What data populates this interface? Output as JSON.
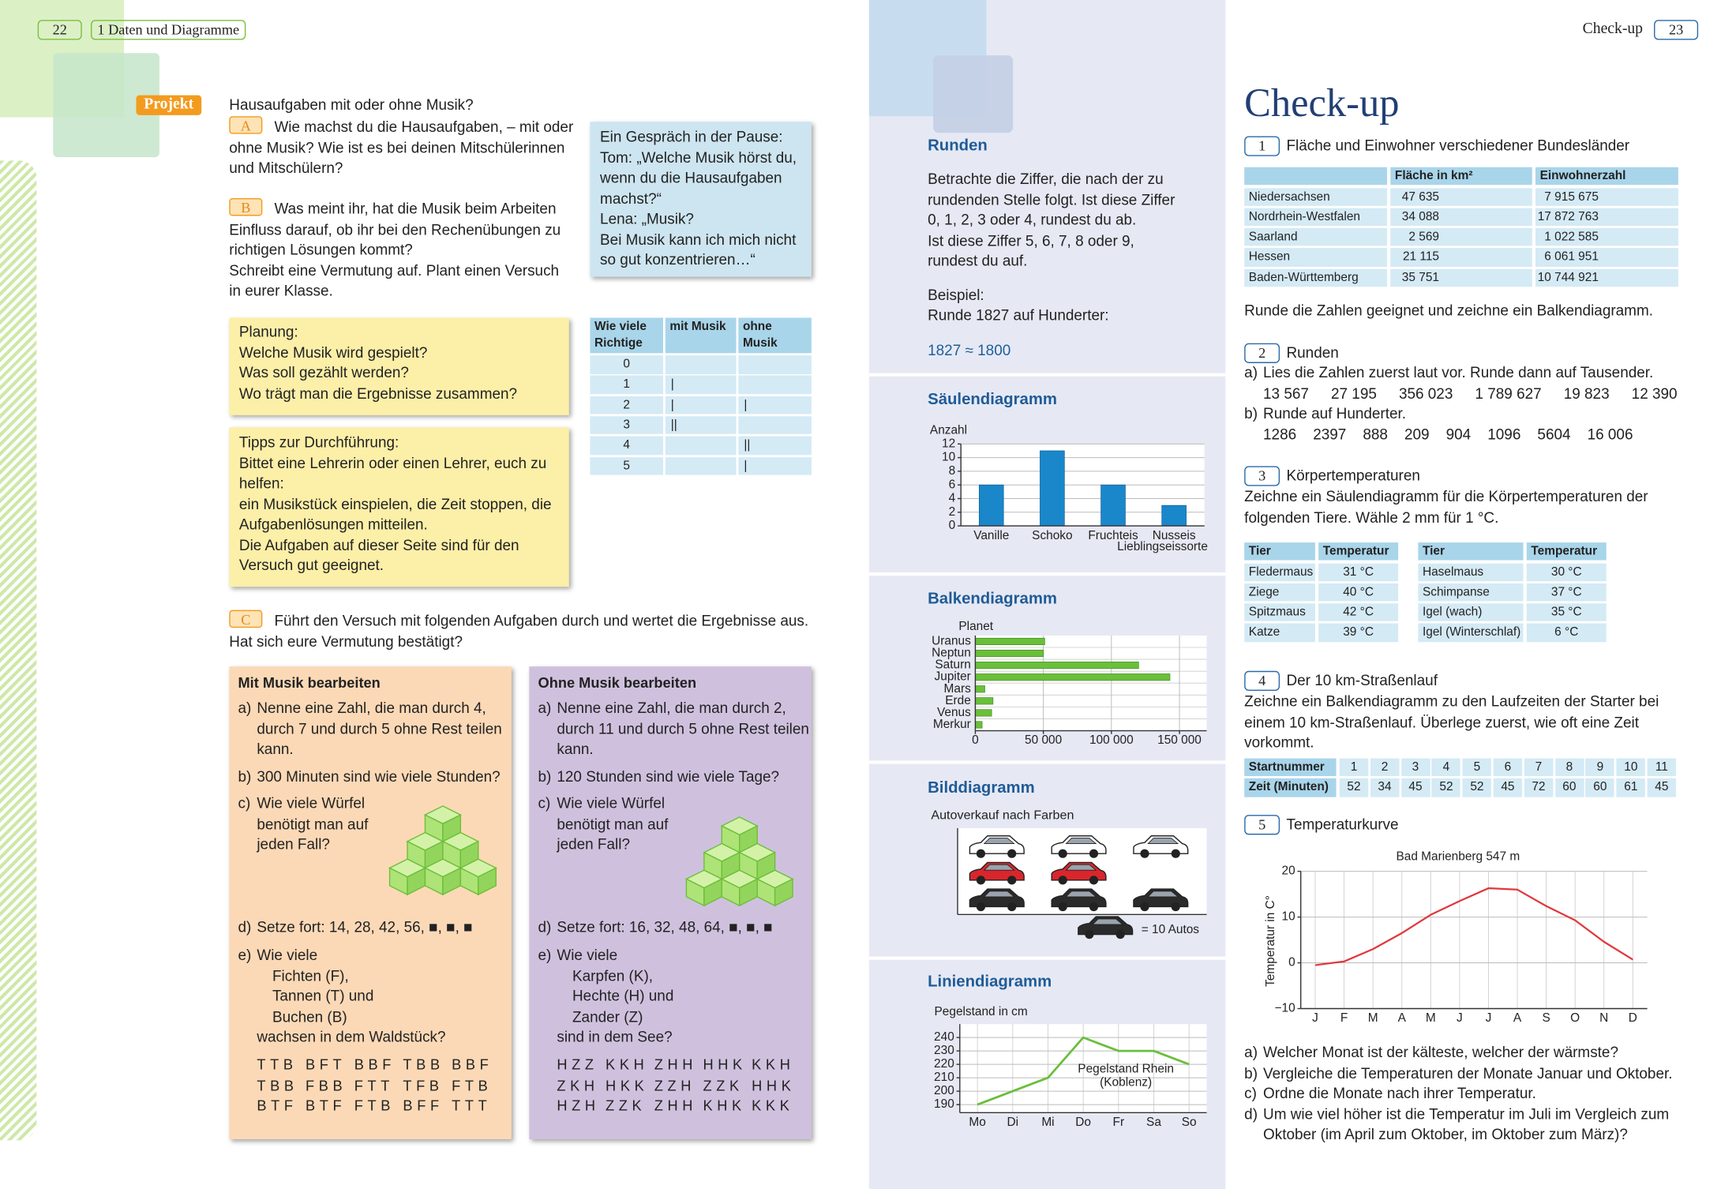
{
  "left_page": {
    "page_number": "22",
    "chapter": "1 Daten und Diagramme",
    "project_label": "Projekt",
    "project_title": "Hausaufgaben mit oder ohne Musik?",
    "task_a": {
      "label": "A",
      "text": "Wie machst du die Hausaufgaben, – mit oder ohne Musik? Wie ist es bei deinen Mitschülerinnen und Mitschülern?"
    },
    "task_b": {
      "label": "B",
      "paragraphs": [
        "Was meint ihr, hat die Musik beim Arbeiten Einfluss darauf, ob ihr bei den Rechenübungen zu richtigen Lösungen kommt?",
        "Schreibt eine Vermutung auf. Plant einen Versuch in eurer Klasse."
      ]
    },
    "dialog": [
      "Ein Gespräch in der Pause:",
      "Tom: „Welche Musik hörst du, wenn du die Hausaufgaben machst?“",
      "Lena: „Musik?",
      "Bei Musik kann ich mich nicht so gut konzentrieren…“"
    ],
    "tally_table": {
      "header": [
        "Wie viele Richtige",
        "mit Musik",
        "ohne Musik"
      ],
      "rows": [
        {
          "count": "0"
        },
        {
          "count": "1",
          "with": "|"
        },
        {
          "count": "2",
          "with": "|",
          "without": "|"
        },
        {
          "count": "3",
          "with": "||"
        },
        {
          "count": "4",
          "without": "||"
        },
        {
          "count": "5",
          "without": "|"
        }
      ]
    },
    "planning": [
      "Planung:",
      "Welche Musik wird gespielt?",
      "Was soll gezählt werden?",
      "Wo trägt man die Ergebnisse zusammen?"
    ],
    "tips": [
      "Tipps zur Durchführung:",
      "Bittet eine Lehrerin oder einen Lehrer, euch zu helfen:",
      "ein Musikstück einspielen, die Zeit stoppen, die Aufgabenlösungen mitteilen.",
      "Die Aufgaben auf dieser Seite sind für den Versuch gut geeignet."
    ],
    "task_c": {
      "label": "C",
      "text": "Führt den Versuch mit folgenden Aufgaben durch und wertet die Ergebnisse aus. Hat sich eure Vermutung bestätigt?"
    },
    "cards": [
      {
        "title": "Mit Musik bearbeiten",
        "items": [
          {
            "label": "a)",
            "lines": [
              "Nenne eine Zahl, die man durch 4,",
              "durch 7 und durch 5 ohne Rest teilen",
              "kann."
            ]
          },
          {
            "label": "b)",
            "lines": [
              "300 Minuten sind wie viele Stunden?"
            ]
          },
          {
            "label": "c)",
            "lines": [
              "Wie viele Würfel",
              "benötigt man auf",
              "jeden Fall?"
            ]
          },
          {
            "label": "d)",
            "lines": [
              "Setze fort: 14, 28, 42, 56, ■, ■, ■"
            ]
          },
          {
            "label": "e)",
            "lines": [
              "Wie viele",
              "Fichten (F),",
              "Tannen (T) und",
              "Buchen (B)",
              "wachsen in dem Waldstück?"
            ]
          }
        ],
        "letters": [
          [
            "TTB",
            "BFT",
            "BBF",
            "TBB",
            "BBF"
          ],
          [
            "TBB",
            "FBB",
            "FTT",
            "TFB",
            "FTB"
          ],
          [
            "BTF",
            "BTF",
            "FTB",
            "BFF",
            "TTT"
          ]
        ]
      },
      {
        "title": "Ohne Musik bearbeiten",
        "items": [
          {
            "label": "a)",
            "lines": [
              "Nenne eine Zahl, die man durch 2,",
              "durch 11 und durch 5 ohne Rest teilen",
              "kann."
            ]
          },
          {
            "label": "b)",
            "lines": [
              "120 Stunden sind wie viele Tage?"
            ]
          },
          {
            "label": "c)",
            "lines": [
              "Wie viele Würfel",
              "benötigt man auf",
              "jeden Fall?"
            ]
          },
          {
            "label": "d)",
            "lines": [
              "Setze fort: 16, 32, 48, 64, ■, ■, ■"
            ]
          },
          {
            "label": "e)",
            "lines": [
              "Wie viele",
              "Karpfen (K),",
              "Hechte (H) und",
              "Zander (Z)",
              "sind in dem See?"
            ]
          }
        ],
        "letters": [
          [
            "HZZ",
            "KKH",
            "ZHH",
            "HHK",
            "KKH"
          ],
          [
            "ZKH",
            "HKK",
            "ZZH",
            "ZZK",
            "HHK"
          ],
          [
            "HZH",
            "ZZK",
            "ZHH",
            "KHK",
            "KKK"
          ]
        ]
      }
    ]
  },
  "middle_column": {
    "rounding": {
      "title": "Runden",
      "lines": [
        "Betrachte die Ziffer, die nach der zu",
        "rundenden Stelle folgt. Ist diese Ziffer",
        "0, 1, 2, 3 oder 4, rundest du ab.",
        "Ist diese Ziffer 5, 6, 7, 8 oder 9,",
        "rundest du auf."
      ],
      "example_label": "Beispiel:",
      "example_text": "Runde 1827 auf Hunderter:",
      "example_result": "1827 ≈ 1800"
    },
    "column_chart": {
      "type": "bar",
      "title": "Säulendiagramm",
      "y_label": "Anzahl",
      "x_label": "Lieblingseissorte",
      "categories": [
        "Vanille",
        "Schoko",
        "Fruchteis",
        "Nusseis"
      ],
      "values": [
        6,
        11,
        6,
        3
      ],
      "color": "#1a87cb",
      "ylim": [
        0,
        12
      ],
      "yticks": [
        0,
        2,
        4,
        6,
        8,
        10,
        12
      ],
      "grid": true
    },
    "bar_chart": {
      "type": "barh",
      "title": "Balkendiagramm",
      "y_label": "Planet",
      "categories": [
        "Uranus",
        "Neptun",
        "Saturn",
        "Jupiter",
        "Mars",
        "Erde",
        "Venus",
        "Merkur"
      ],
      "values": [
        51000,
        50000,
        120000,
        143000,
        7000,
        13000,
        12000,
        5000
      ],
      "color": "#6abf3b",
      "xlim": [
        0,
        170000
      ],
      "xticks": [
        0,
        {
          "value": 50000,
          "label": "50 000"
        },
        {
          "value": 100000,
          "label": "100 000"
        },
        {
          "value": 150000,
          "label": "150 000"
        }
      ],
      "grid": true
    },
    "pictogram": {
      "type": "pictogram",
      "title": "Bilddiagramm",
      "subtitle": "Autoverkauf nach Farben",
      "colors": [
        "#ffffff",
        "#d9262c",
        "#2b2b2b"
      ],
      "values": [
        30,
        20,
        30
      ],
      "unit": 10,
      "legend": "= 10 Autos"
    },
    "line_chart": {
      "type": "line",
      "title": "Liniendiagramm",
      "y_label": "Pegelstand in cm",
      "annotation": [
        "Pegelstand Rhein",
        "(Koblenz)"
      ],
      "categories": [
        "Mo",
        "Di",
        "Mi",
        "Do",
        "Fr",
        "Sa",
        "So"
      ],
      "values": [
        190,
        200,
        210,
        240,
        230,
        230,
        220
      ],
      "color": "#6abf3b",
      "ylim": [
        184,
        250
      ],
      "yticks": [
        190,
        200,
        210,
        220,
        230,
        240
      ],
      "grid": true
    }
  },
  "right_page": {
    "page_number": "23",
    "header": "Check-up",
    "title": "Check-up",
    "task1": {
      "number": "1",
      "title": "Fläche und Einwohner verschiedener Bundesländer",
      "table": {
        "header": [
          "Fläche in km²",
          "Einwohnerzahl"
        ],
        "rows": [
          [
            "Niedersachsen",
            "47 635",
            "7 915 675"
          ],
          [
            "Nordrhein-Westfalen",
            "34 088",
            "17 872 763"
          ],
          [
            "Saarland",
            "2 569",
            "1 022 585"
          ],
          [
            "Hessen",
            "21 115",
            "6 061 951"
          ],
          [
            "Baden-Württemberg",
            "35 751",
            "10 744 921"
          ]
        ]
      },
      "instruction": "Runde die Zahlen geeignet und zeichne ein Balkendiagramm."
    },
    "task2": {
      "number": "2",
      "title": "Runden",
      "parts": [
        {
          "label": "a)",
          "text": "Lies die Zahlen zuerst laut vor. Runde dann auf Tausender.",
          "numbers": [
            "13 567",
            "27 195",
            "356 023",
            "1 789 627",
            "19 823",
            "12 390"
          ]
        },
        {
          "label": "b)",
          "text": "Runde auf Hunderter.",
          "numbers": [
            "1286",
            "2397",
            "888",
            "209",
            "904",
            "1096",
            "5604",
            "16 006"
          ]
        }
      ]
    },
    "task3": {
      "number": "3",
      "title": "Körpertemperaturen",
      "text": "Zeichne ein Säulendiagramm für die Körpertemperaturen der folgenden Tiere. Wähle 2 mm für 1 °C.",
      "tables": [
        {
          "header": [
            "Tier",
            "Temperatur"
          ],
          "rows": [
            [
              "Fledermaus",
              "31 °C"
            ],
            [
              "Ziege",
              "40 °C"
            ],
            [
              "Spitzmaus",
              "42 °C"
            ],
            [
              "Katze",
              "39 °C"
            ]
          ]
        },
        {
          "header": [
            "Tier",
            "Temperatur"
          ],
          "rows": [
            [
              "Haselmaus",
              "30 °C"
            ],
            [
              "Schimpanse",
              "37 °C"
            ],
            [
              "Igel (wach)",
              "35 °C"
            ],
            [
              "Igel (Winterschlaf)",
              "6 °C"
            ]
          ]
        }
      ]
    },
    "task4": {
      "number": "4",
      "title": "Der 10 km-Straßenlauf",
      "text": "Zeichne ein Balkendiagramm zu den Laufzeiten der Starter bei einem 10 km-Straßenlauf. Überlege zuerst, wie oft eine Zeit vorkommt.",
      "table": {
        "row_labels": [
          "Startnummer",
          "Zeit (Minuten)"
        ],
        "start_numbers": [
          1,
          2,
          3,
          4,
          5,
          6,
          7,
          8,
          9,
          10,
          11
        ],
        "times": [
          52,
          34,
          45,
          52,
          52,
          45,
          72,
          60,
          60,
          61,
          45
        ]
      }
    },
    "task5": {
      "number": "5",
      "title": "Temperaturkurve",
      "chart": {
        "type": "line",
        "title": "Bad Marienberg 547 m",
        "y_label": "Temperatur in C°",
        "categories": [
          "J",
          "F",
          "M",
          "A",
          "M",
          "J",
          "J",
          "A",
          "S",
          "O",
          "N",
          "D"
        ],
        "values": [
          -0.5,
          0.3,
          3,
          6.5,
          10.5,
          13.5,
          16.3,
          16,
          12.4,
          9.3,
          4.6,
          0.7
        ],
        "color": "#e0383c",
        "ylim": [
          -10,
          20
        ],
        "yticks": [
          {
            "value": -10,
            "label": "−10"
          },
          0,
          10,
          20
        ],
        "grid": true
      },
      "questions": [
        {
          "label": "a)",
          "text": "Welcher Monat ist der kälteste, welcher der wärmste?"
        },
        {
          "label": "b)",
          "text": "Vergleiche die Temperaturen der Monate Januar und Oktober."
        },
        {
          "label": "c)",
          "text": "Ordne die Monate nach ihrer Temperatur."
        },
        {
          "label": "d)",
          "text": "Um wie viel höher ist die Temperatur im Juli im Vergleich zum Oktober (im April zum Oktober, im Oktober zum März)?"
        }
      ]
    }
  }
}
